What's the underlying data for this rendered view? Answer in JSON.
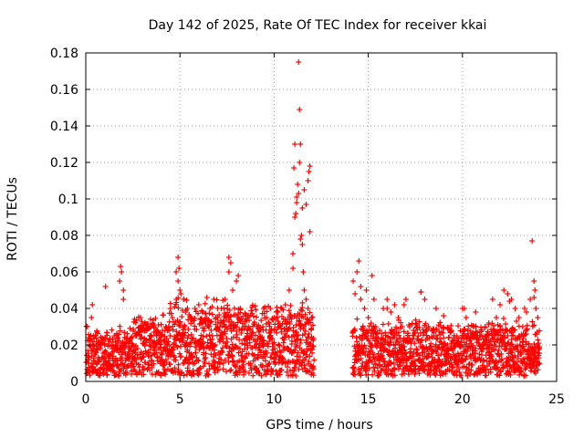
{
  "chart_data": {
    "type": "scatter",
    "title": "Day 142 of 2025, Rate Of TEC Index for receiver kkai",
    "xlabel": "GPS time / hours",
    "ylabel": "ROTI / TECUs",
    "xlim": [
      0,
      25
    ],
    "ylim": [
      0,
      0.18
    ],
    "xticks": [
      "0",
      "5",
      "10",
      "15",
      "20",
      "25"
    ],
    "yticks": [
      "0",
      "0.02",
      "0.04",
      "0.06",
      "0.08",
      "0.1",
      "0.12",
      "0.14",
      "0.16",
      "0.18"
    ],
    "grid": true,
    "marker": "+",
    "color": "#ff0000",
    "series": [
      {
        "x": [
          0.1,
          0.2,
          0.3,
          0.35,
          0.5,
          0.6,
          0.8,
          1.0,
          1.2,
          1.4,
          1.6,
          1.8,
          1.9,
          2.0,
          2.1,
          2.3,
          2.5,
          2.7,
          2.9,
          3.0,
          3.2,
          3.4,
          3.6,
          3.8,
          4.0,
          4.2,
          4.4,
          4.6,
          4.8,
          4.9,
          5.0,
          5.2,
          5.4,
          5.6,
          5.8,
          6.0,
          6.2,
          6.4,
          6.6,
          6.8,
          7.0,
          7.2,
          7.4,
          7.6,
          7.8,
          8.0,
          8.2,
          8.4,
          8.6,
          8.8,
          9.0,
          9.2,
          9.4,
          9.6,
          9.8,
          10.0,
          10.2,
          10.4,
          10.6,
          10.8,
          11.0,
          11.05,
          11.1,
          11.15,
          11.2,
          11.25,
          11.3,
          11.35,
          11.4,
          11.45,
          11.5,
          11.55,
          11.6,
          11.7,
          11.8,
          11.9,
          12.0,
          14.2,
          14.4,
          14.5,
          14.6,
          14.8,
          15.0,
          15.2,
          15.4,
          15.6,
          15.8,
          16.0,
          16.2,
          16.4,
          16.6,
          16.8,
          17.0,
          17.2,
          17.4,
          17.6,
          17.8,
          18.0,
          18.2,
          18.4,
          18.6,
          18.8,
          19.0,
          19.2,
          19.4,
          19.6,
          19.8,
          20.0,
          20.2,
          20.4,
          20.6,
          20.8,
          21.0,
          21.2,
          21.4,
          21.6,
          21.8,
          22.0,
          22.2,
          22.4,
          22.6,
          22.8,
          23.0,
          23.2,
          23.4,
          23.6,
          23.7,
          23.8,
          23.9,
          24.0,
          0.4,
          1.05,
          1.85,
          2.0,
          4.9,
          4.95,
          5.05,
          7.6,
          7.7,
          8.1,
          11.0,
          11.1,
          11.2,
          11.3,
          11.35,
          11.4,
          11.5,
          11.6,
          11.7,
          11.8,
          11.85,
          11.9,
          14.3,
          14.6,
          14.9,
          15.3,
          16.0,
          16.9,
          17.8,
          18.6,
          20.1,
          20.7,
          22.0,
          22.5,
          23.3,
          23.8,
          23.85,
          0.6,
          1.3,
          2.6,
          3.3,
          4.1,
          5.3,
          6.3,
          7.3,
          8.3,
          9.3,
          10.3,
          12.0,
          14.7,
          15.7,
          16.7,
          17.7,
          18.7,
          19.7,
          20.7,
          21.7,
          22.7,
          23.7
        ],
        "y": [
          0.012,
          0.02,
          0.035,
          0.042,
          0.015,
          0.018,
          0.02,
          0.016,
          0.022,
          0.018,
          0.02,
          0.055,
          0.06,
          0.045,
          0.015,
          0.018,
          0.02,
          0.025,
          0.035,
          0.03,
          0.022,
          0.025,
          0.03,
          0.028,
          0.025,
          0.028,
          0.03,
          0.035,
          0.06,
          0.068,
          0.05,
          0.045,
          0.04,
          0.035,
          0.04,
          0.042,
          0.038,
          0.035,
          0.04,
          0.045,
          0.035,
          0.04,
          0.045,
          0.068,
          0.05,
          0.055,
          0.04,
          0.03,
          0.028,
          0.025,
          0.022,
          0.028,
          0.03,
          0.035,
          0.04,
          0.035,
          0.038,
          0.04,
          0.042,
          0.05,
          0.062,
          0.117,
          0.13,
          0.092,
          0.101,
          0.108,
          0.175,
          0.149,
          0.13,
          0.08,
          0.075,
          0.06,
          0.05,
          0.045,
          0.04,
          0.118,
          0.035,
          0.055,
          0.06,
          0.066,
          0.045,
          0.04,
          0.035,
          0.058,
          0.03,
          0.028,
          0.04,
          0.045,
          0.038,
          0.042,
          0.035,
          0.03,
          0.045,
          0.03,
          0.028,
          0.03,
          0.049,
          0.045,
          0.03,
          0.028,
          0.025,
          0.022,
          0.036,
          0.02,
          0.018,
          0.02,
          0.022,
          0.04,
          0.035,
          0.028,
          0.03,
          0.025,
          0.028,
          0.03,
          0.032,
          0.045,
          0.035,
          0.03,
          0.05,
          0.048,
          0.045,
          0.04,
          0.035,
          0.03,
          0.038,
          0.045,
          0.077,
          0.055,
          0.04,
          0.035,
          0.025,
          0.052,
          0.063,
          0.05,
          0.055,
          0.062,
          0.048,
          0.06,
          0.065,
          0.058,
          0.07,
          0.09,
          0.098,
          0.103,
          0.12,
          0.078,
          0.095,
          0.105,
          0.097,
          0.11,
          0.115,
          0.082,
          0.048,
          0.052,
          0.05,
          0.045,
          0.04,
          0.042,
          0.049,
          0.04,
          0.04,
          0.038,
          0.042,
          0.044,
          0.04,
          0.046,
          0.05,
          0.01,
          0.008,
          0.012,
          0.01,
          0.009,
          0.012,
          0.011,
          0.01,
          0.012,
          0.009,
          0.011,
          0.008,
          0.01,
          0.012,
          0.009,
          0.011,
          0.01,
          0.009,
          0.012,
          0.01,
          0.011,
          0.009
        ]
      }
    ]
  }
}
